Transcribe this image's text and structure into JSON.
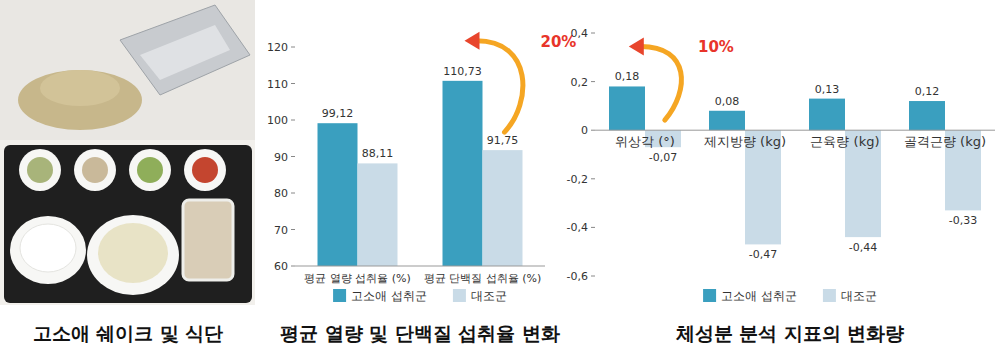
{
  "photo_panel": {
    "caption": "고소애 쉐이크 및 식단"
  },
  "chart_data": [
    {
      "type": "bar",
      "title": "평균 열량 및 단백질 섭취율 변화",
      "categories": [
        "평균 열량 섭취율 (%)",
        "평균 단백질 섭취율 (%)"
      ],
      "series": [
        {
          "name": "고소애 섭취군",
          "color": "#3a9fbf",
          "values": [
            99.12,
            110.73
          ],
          "value_labels": [
            "99,12",
            "110,73"
          ]
        },
        {
          "name": "대조군",
          "color": "#c9dbe7",
          "values": [
            88.11,
            91.75
          ],
          "value_labels": [
            "88,11",
            "91,75"
          ]
        }
      ],
      "ylim": [
        60,
        120
      ],
      "yticks": [
        60,
        70,
        80,
        90,
        100,
        110,
        120
      ],
      "grid": false,
      "legend": "bottom",
      "data_labels": true,
      "annotations": [
        {
          "text": "20%",
          "category": "평균 단백질 섭취율 (%)"
        }
      ]
    },
    {
      "type": "bar",
      "title": "체성분 분석 지표의 변화량",
      "categories": [
        "위상각 (°)",
        "제지방량 (kg)",
        "근육량 (kg)",
        "골격근량 (kg)"
      ],
      "series": [
        {
          "name": "고소애 섭취군",
          "color": "#3a9fbf",
          "values": [
            0.18,
            0.08,
            0.13,
            0.12
          ],
          "value_labels": [
            "0,18",
            "0,08",
            "0,13",
            "0,12"
          ]
        },
        {
          "name": "대조군",
          "color": "#c9dbe7",
          "values": [
            -0.07,
            -0.47,
            -0.44,
            -0.33
          ],
          "value_labels": [
            "-0,07",
            "-0,47",
            "-0,44",
            "-0,33"
          ]
        }
      ],
      "ylim": [
        -0.6,
        0.4
      ],
      "yticks": [
        {
          "value": -0.6,
          "label": "-0,6"
        },
        {
          "value": -0.4,
          "label": "-0,4"
        },
        {
          "value": -0.2,
          "label": "-0,2"
        },
        0,
        {
          "value": 0.2,
          "label": "0,2"
        },
        {
          "value": 0.4,
          "label": "0,4"
        }
      ],
      "grid": false,
      "legend": "bottom",
      "data_labels": true,
      "annotations": [
        {
          "text": "10%",
          "category": "위상각 (°)"
        }
      ]
    }
  ]
}
